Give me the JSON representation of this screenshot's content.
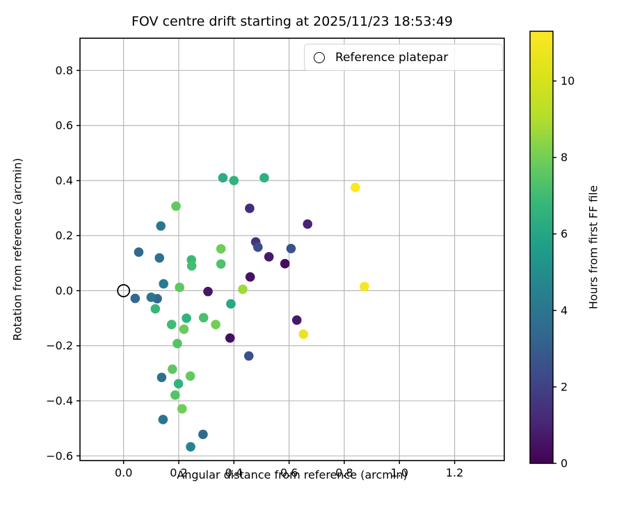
{
  "title": "FOV centre drift starting at 2025/11/23 18:53:49",
  "legend": {
    "label": "Reference platepar"
  },
  "chart_data": {
    "type": "scatter",
    "title": "FOV centre drift starting at 2025/11/23 18:53:49",
    "xlabel": "Angular distance from reference (arcmin)",
    "ylabel": "Rotation from reference (arcmin)",
    "xlim": [
      -0.158,
      1.38
    ],
    "ylim": [
      -0.617,
      0.917
    ],
    "grid": true,
    "grid_color": "#b0b0b0",
    "spine_color": "#000000",
    "x_ticks": [
      {
        "v": 0.0,
        "label": "0.0"
      },
      {
        "v": 0.2,
        "label": "0.2"
      },
      {
        "v": 0.4,
        "label": "0.4"
      },
      {
        "v": 0.6,
        "label": "0.6"
      },
      {
        "v": 0.8,
        "label": "0.8"
      },
      {
        "v": 1.0,
        "label": "1.0"
      },
      {
        "v": 1.2,
        "label": "1.2"
      }
    ],
    "y_ticks": [
      {
        "v": 0.8,
        "label": "0.8"
      },
      {
        "v": 0.6,
        "label": "0.6"
      },
      {
        "v": 0.4,
        "label": "0.4"
      },
      {
        "v": 0.2,
        "label": "0.2"
      },
      {
        "v": 0.0,
        "label": "0.0"
      },
      {
        "v": -0.2,
        "label": "−0.2"
      },
      {
        "v": -0.4,
        "label": "−0.4"
      },
      {
        "v": -0.6,
        "label": "−0.6"
      }
    ],
    "reference": {
      "x": 0.0,
      "y": 0.0,
      "label": "Reference platepar"
    },
    "points": [
      {
        "x": 0.36,
        "y": 0.41,
        "hours": 6.3
      },
      {
        "x": 0.4,
        "y": 0.4,
        "hours": 6.6
      },
      {
        "x": 0.51,
        "y": 0.41,
        "hours": 6.4
      },
      {
        "x": 0.84,
        "y": 0.375,
        "hours": 11.2
      },
      {
        "x": 0.19,
        "y": 0.307,
        "hours": 7.7
      },
      {
        "x": 0.457,
        "y": 0.299,
        "hours": 1.3
      },
      {
        "x": 0.667,
        "y": 0.242,
        "hours": 1.0
      },
      {
        "x": 0.135,
        "y": 0.235,
        "hours": 4.0
      },
      {
        "x": 0.479,
        "y": 0.177,
        "hours": 1.5
      },
      {
        "x": 0.487,
        "y": 0.158,
        "hours": 2.4
      },
      {
        "x": 0.607,
        "y": 0.153,
        "hours": 2.6
      },
      {
        "x": 0.353,
        "y": 0.152,
        "hours": 7.9
      },
      {
        "x": 0.527,
        "y": 0.123,
        "hours": 0.7
      },
      {
        "x": 0.055,
        "y": 0.14,
        "hours": 3.5
      },
      {
        "x": 0.13,
        "y": 0.119,
        "hours": 3.8
      },
      {
        "x": 0.585,
        "y": 0.098,
        "hours": 0.3
      },
      {
        "x": 0.246,
        "y": 0.112,
        "hours": 6.9
      },
      {
        "x": 0.247,
        "y": 0.09,
        "hours": 7.1
      },
      {
        "x": 0.353,
        "y": 0.097,
        "hours": 7.3
      },
      {
        "x": 0.459,
        "y": 0.05,
        "hours": 0.5
      },
      {
        "x": 0.145,
        "y": 0.025,
        "hours": 4.2
      },
      {
        "x": 0.203,
        "y": 0.012,
        "hours": 7.6
      },
      {
        "x": 0.432,
        "y": 0.005,
        "hours": 8.7
      },
      {
        "x": 0.873,
        "y": 0.015,
        "hours": 11.1
      },
      {
        "x": 0.306,
        "y": -0.003,
        "hours": 0.6
      },
      {
        "x": 0.042,
        "y": -0.028,
        "hours": 3.5
      },
      {
        "x": 0.1,
        "y": -0.024,
        "hours": 4.0
      },
      {
        "x": 0.122,
        "y": -0.029,
        "hours": 3.4
      },
      {
        "x": 0.115,
        "y": -0.066,
        "hours": 6.8
      },
      {
        "x": 0.228,
        "y": -0.1,
        "hours": 6.6
      },
      {
        "x": 0.174,
        "y": -0.123,
        "hours": 7.0
      },
      {
        "x": 0.219,
        "y": -0.14,
        "hours": 7.8
      },
      {
        "x": 0.29,
        "y": -0.098,
        "hours": 7.2
      },
      {
        "x": 0.334,
        "y": -0.123,
        "hours": 8.0
      },
      {
        "x": 0.389,
        "y": -0.048,
        "hours": 6.1
      },
      {
        "x": 0.386,
        "y": -0.172,
        "hours": 0.4
      },
      {
        "x": 0.454,
        "y": -0.237,
        "hours": 2.5
      },
      {
        "x": 0.195,
        "y": -0.192,
        "hours": 7.4
      },
      {
        "x": 0.177,
        "y": -0.285,
        "hours": 7.6
      },
      {
        "x": 0.138,
        "y": -0.315,
        "hours": 3.8
      },
      {
        "x": 0.242,
        "y": -0.31,
        "hours": 7.7
      },
      {
        "x": 0.199,
        "y": -0.338,
        "hours": 6.6
      },
      {
        "x": 0.187,
        "y": -0.379,
        "hours": 7.4
      },
      {
        "x": 0.212,
        "y": -0.429,
        "hours": 7.9
      },
      {
        "x": 0.143,
        "y": -0.468,
        "hours": 3.9
      },
      {
        "x": 0.288,
        "y": -0.522,
        "hours": 3.5
      },
      {
        "x": 0.243,
        "y": -0.567,
        "hours": 4.6
      },
      {
        "x": 0.628,
        "y": -0.107,
        "hours": 0.7
      },
      {
        "x": 0.652,
        "y": -0.158,
        "hours": 10.7
      }
    ],
    "marker_radius_px": 6.8,
    "colorbar": {
      "label": "Hours from first FF file",
      "vmin": 0,
      "vmax": 11.3,
      "ticks": [
        0,
        2,
        4,
        6,
        8,
        10
      ],
      "colormap": "viridis",
      "stops": [
        {
          "t": 0.0,
          "c": "#440154"
        },
        {
          "t": 0.1,
          "c": "#482878"
        },
        {
          "t": 0.2,
          "c": "#3e4989"
        },
        {
          "t": 0.3,
          "c": "#31688e"
        },
        {
          "t": 0.4,
          "c": "#26828e"
        },
        {
          "t": 0.5,
          "c": "#1f9e89"
        },
        {
          "t": 0.6,
          "c": "#35b779"
        },
        {
          "t": 0.7,
          "c": "#6dcd59"
        },
        {
          "t": 0.8,
          "c": "#b4de2c"
        },
        {
          "t": 0.9,
          "c": "#dce319"
        },
        {
          "t": 1.0,
          "c": "#fde725"
        }
      ]
    }
  }
}
